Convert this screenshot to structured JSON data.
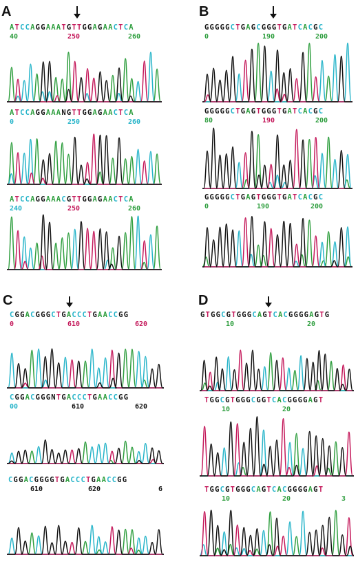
{
  "colors": {
    "A": "#2e9e3e",
    "C": "#26b4c9",
    "G": "#111111",
    "T": "#c4185a",
    "N": "#111111",
    "axis": "#c4185a"
  },
  "panels": [
    {
      "id": "A",
      "label": "A",
      "traces": [
        {
          "sequence": "ATCCAGGAAATGTTGGAGAACTCA",
          "ticks": [
            "40",
            "250",
            "260"
          ]
        },
        {
          "sequence": "ATCCAGGAAANGTTGGAGAACTCA",
          "ticks": [
            "0",
            "250",
            "260"
          ]
        },
        {
          "sequence": "ATCCAGGAAACGTTGGAGAACTCA",
          "ticks": [
            "240",
            "250",
            "260"
          ]
        }
      ]
    },
    {
      "id": "B",
      "label": "B",
      "traces": [
        {
          "sequence": "GGGGGCTGAGCGGGTGATCACGC",
          "ticks": [
            "0",
            "190",
            "200"
          ]
        },
        {
          "sequence": "GGGGGCTGAGTGGGTGATCACGC",
          "ticks": [
            "80",
            "190",
            "200"
          ]
        },
        {
          "sequence": "GGGGGCTGAGTGGGTGATCACGC",
          "ticks": [
            "0",
            "190",
            "200"
          ]
        }
      ]
    },
    {
      "id": "C",
      "label": "C",
      "traces": [
        {
          "sequence": "CGGACGGGCTGACCCTGAACCGG",
          "ticks": [
            "0",
            "610",
            "620"
          ]
        },
        {
          "sequence": "CGGACGGGNTGACCCTGAACCGG",
          "ticks": [
            "00",
            "610",
            "620"
          ]
        },
        {
          "sequence": "CGGACGGGGTGACCCTGAACCGG",
          "ticks": [
            "610",
            "620",
            "6"
          ]
        }
      ]
    },
    {
      "id": "D",
      "label": "D",
      "traces": [
        {
          "sequence": "GTGGCGTGGGCAGTCACGGGGAGTG",
          "ticks": [
            "10",
            "20"
          ]
        },
        {
          "sequence": "TGGCGTGGGCGGTCACGGGGAGT",
          "ticks": [
            "10",
            "20"
          ]
        },
        {
          "sequence": "TGGCGTGGGCAGTCACGGGGAGT",
          "ticks": [
            "10",
            "20",
            "3"
          ]
        }
      ]
    }
  ]
}
